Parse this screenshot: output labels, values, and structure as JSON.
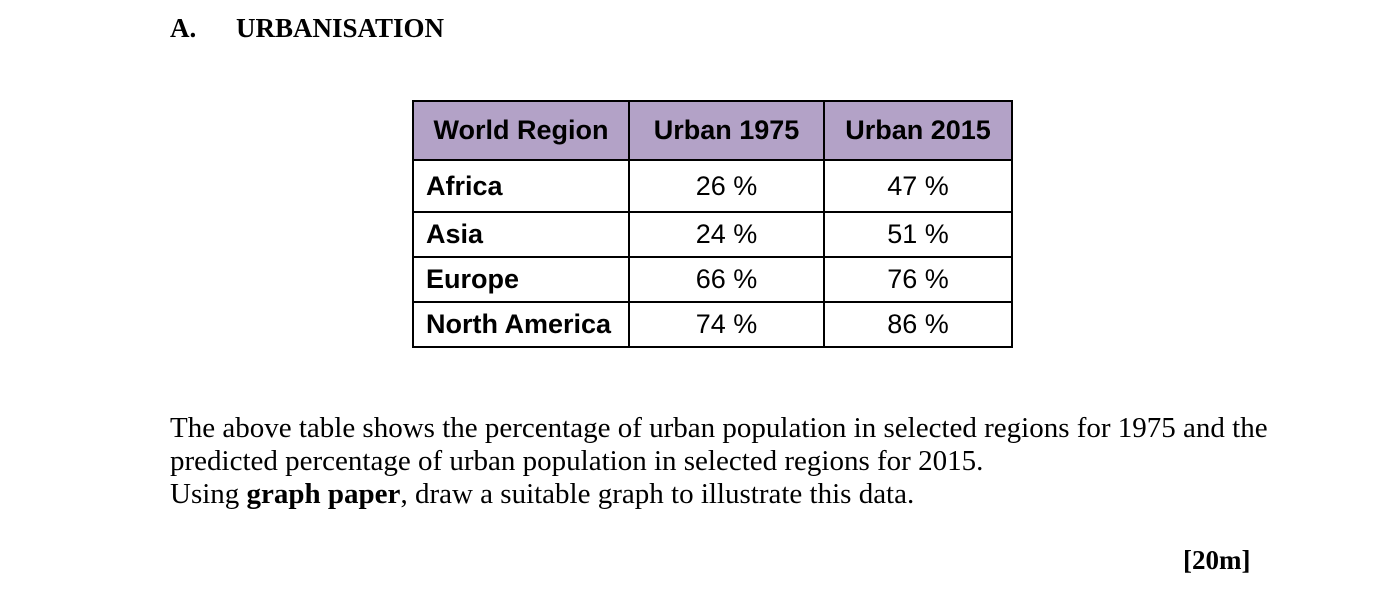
{
  "section": {
    "letter": "A.",
    "title": "URBANISATION"
  },
  "table": {
    "headers": [
      "World Region",
      "Urban 1975",
      "Urban 2015"
    ],
    "rows": [
      {
        "region": "Africa",
        "urban_1975": "26 %",
        "urban_2015": "47 %"
      },
      {
        "region": "Asia",
        "urban_1975": "24 %",
        "urban_2015": "51 %"
      },
      {
        "region": "Europe",
        "urban_1975": "66 %",
        "urban_2015": "76 %"
      },
      {
        "region": "North America",
        "urban_1975": "74 %",
        "urban_2015": "86 %"
      }
    ],
    "header_color": "#b3a2c7"
  },
  "question": {
    "paragraph": "The above table shows the percentage of urban population in selected regions for 1975 and the predicted percentage of urban population in selected regions for 2015.",
    "instruction_before": "Using ",
    "instruction_bold": "graph paper",
    "instruction_after": ", draw a suitable graph to illustrate this data."
  },
  "marks": "[20m]"
}
